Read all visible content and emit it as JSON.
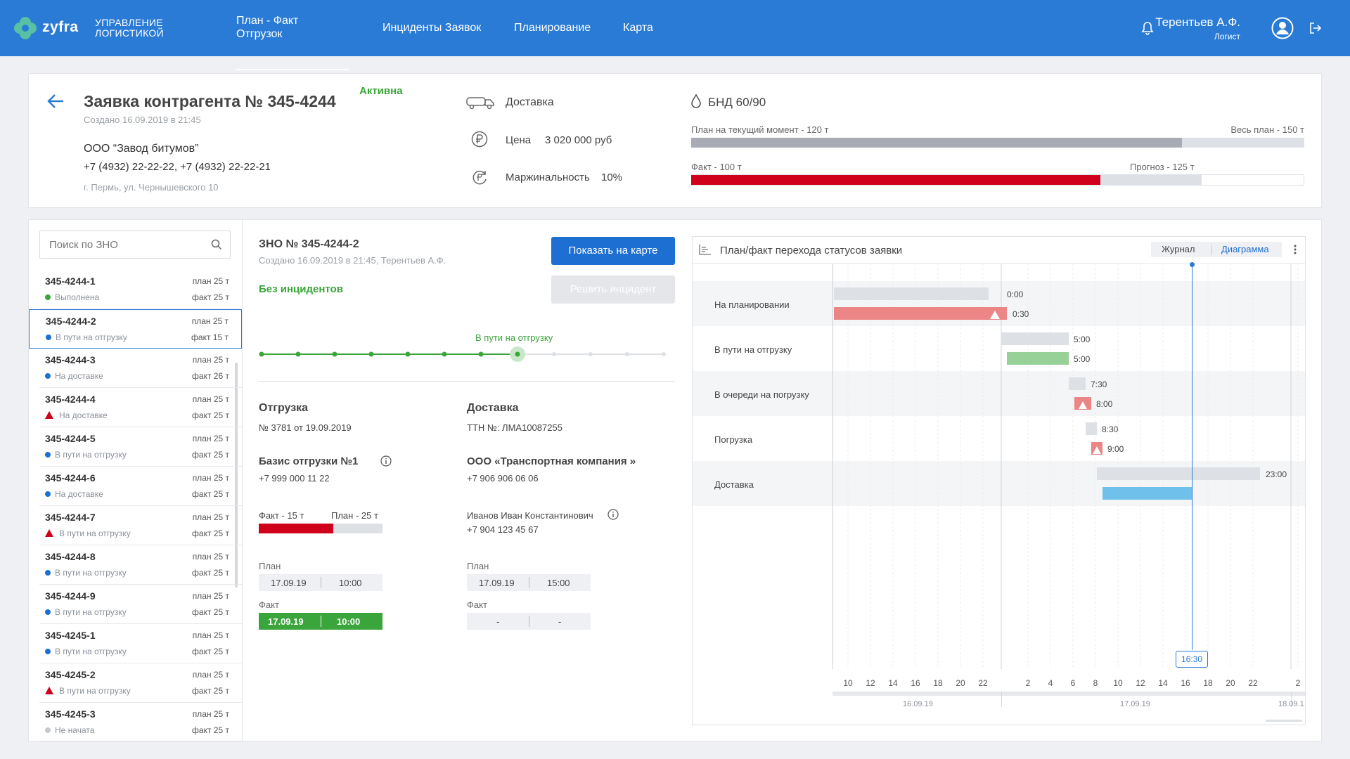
{
  "header": {
    "brand": "zyfra",
    "brand_sub_1": "Управление",
    "brand_sub_2": "логистикой",
    "nav": [
      {
        "label_1": "План - Факт",
        "label_2": "Отгрузок"
      },
      {
        "label": "Инциденты Заявок"
      },
      {
        "label": "Планирование"
      },
      {
        "label": "Карта"
      }
    ],
    "user_name": "Терентьев А.Ф.",
    "user_role": "Логист"
  },
  "order": {
    "title": "Заявка контрагента № 345-4244",
    "status": "Активна",
    "created": "Создано 16.09.2019 в 21:45",
    "company": "ООО “Завод битумов”",
    "phones": "+7 (4932) 22-22-22, +7 (4932) 22-22-21",
    "address": "г. Пермь, ул. Чернышевского 10",
    "delivery_label": "Доставка",
    "price_label": "Цена",
    "price_value": "3 020 000 руб",
    "margin_label": "Маржинальность",
    "margin_value": "10%",
    "product": "БНД 60/90",
    "plan_now_label": "План на текущий момент - 120 т",
    "plan_total_label": "Весь план - 150 т",
    "fact_label": "Факт - 100 т",
    "forecast_label": "Прогноз - 125 т",
    "plan_now_fraction": 0.8,
    "fact_fraction": 0.667,
    "forecast_fraction": 0.833
  },
  "search": {
    "placeholder": "Поиск по ЗНО"
  },
  "list": [
    {
      "id": "345-4244-1",
      "status": "Выполнена",
      "plan": "план 25 т",
      "fact": "факт 25 т",
      "marker": "green"
    },
    {
      "id": "345-4244-2",
      "status": "В пути на отгрузку",
      "plan": "план 25 т",
      "fact": "факт 15 т",
      "marker": "blue"
    },
    {
      "id": "345-4244-3",
      "status": "На доставке",
      "plan": "план 25 т",
      "fact": "факт 26 т",
      "marker": "blue"
    },
    {
      "id": "345-4244-4",
      "status": "На доставке",
      "plan": "план 25 т",
      "fact": "факт 25 т",
      "marker": "warn"
    },
    {
      "id": "345-4244-5",
      "status": "В пути на отгрузку",
      "plan": "план 25 т",
      "fact": "факт 25 т",
      "marker": "blue"
    },
    {
      "id": "345-4244-6",
      "status": "На доставке",
      "plan": "план 25 т",
      "fact": "факт 25 т",
      "marker": "blue"
    },
    {
      "id": "345-4244-7",
      "status": "В пути на отгрузку",
      "plan": "план 25 т",
      "fact": "факт 25 т",
      "marker": "warn"
    },
    {
      "id": "345-4244-8",
      "status": "В пути на отгрузку",
      "plan": "план 25 т",
      "fact": "факт 25 т",
      "marker": "blue"
    },
    {
      "id": "345-4244-9",
      "status": "В пути на отгрузку",
      "plan": "план 25 т",
      "fact": "факт 25 т",
      "marker": "blue"
    },
    {
      "id": "345-4245-1",
      "status": "В пути на отгрузку",
      "plan": "план 25 т",
      "fact": "факт 25 т",
      "marker": "blue"
    },
    {
      "id": "345-4245-2",
      "status": "В пути на отгрузку",
      "plan": "план 25 т",
      "fact": "факт 25 т",
      "marker": "warn"
    },
    {
      "id": "345-4245-3",
      "status": "Не начата",
      "plan": "план 25 т",
      "fact": "факт 25 т",
      "marker": "grey"
    }
  ],
  "detail": {
    "title": "ЗНО № 345-4244-2",
    "created": "Создано 16.09.2019 в 21:45, Терентьев А.Ф.",
    "no_incidents": "Без инцидентов",
    "show_map": "Показать на карте",
    "resolve": "Решить инцидент",
    "progress_label": "В пути на отгрузку",
    "progress_steps": 12,
    "progress_current": 7,
    "shipment_h": "Отгрузка",
    "shipment_no": "№ 3781 от 19.09.2019",
    "delivery_h": "Доставка",
    "ttn": "ТТН №:  ЛМА10087255",
    "base_name": "Базис отгрузки №1",
    "base_phone": "+7 999 000 11 22",
    "carrier": "ООО «Транспортная компания »",
    "carrier_phone": "+7 906 906 06 06",
    "fact_t": "Факт - 15 т",
    "plan_t": "План - 25 т",
    "fact_fraction": 0.6,
    "driver": "Иванов Иван Константинович",
    "driver_phone": "+7 904 123 45 67",
    "plan_label": "План",
    "fact_label": "Факт",
    "left_plan_date": "17.09.19",
    "left_plan_time": "10:00",
    "left_fact_date": "17.09.19",
    "left_fact_time": "10:00",
    "right_plan_date": "17.09.19",
    "right_plan_time": "15:00",
    "right_fact_date": "-",
    "right_fact_time": "-"
  },
  "gantt": {
    "title": "План/факт перехода статусов заявки",
    "tab_journal": "Журнал",
    "tab_diagram": "Диаграмма",
    "rows": [
      "На планировании",
      "В пути на отгрузку",
      "В очереди на погрузку",
      "Погрузка",
      "Доставка"
    ],
    "now_label": "16:30",
    "ticks": [
      "10",
      "12",
      "14",
      "16",
      "18",
      "20",
      "22",
      "2",
      "4",
      "6",
      "8",
      "10",
      "12",
      "14",
      "16",
      "18",
      "20",
      "22",
      "2"
    ],
    "dates": [
      "16.09.19",
      "17.09.19",
      "18.09.1"
    ],
    "times": [
      "0:00",
      "0:30",
      "5:00",
      "5:00",
      "7:30",
      "8:00",
      "8:30",
      "9:00",
      "23:00"
    ]
  }
}
